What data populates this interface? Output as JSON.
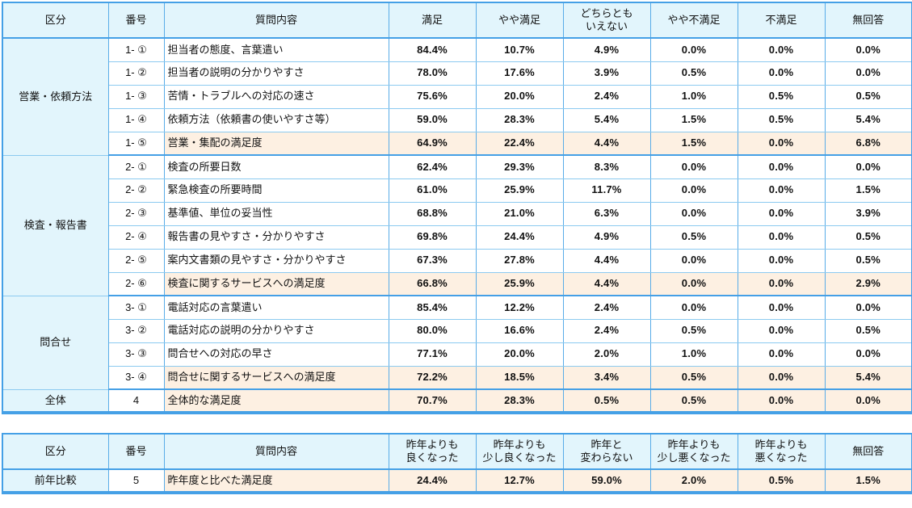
{
  "colors": {
    "border_strong": "#45a0e6",
    "border_light": "#8ccaf0",
    "header_bg": "#e2f5fc",
    "category_bg": "#e2f5fc",
    "highlight_bg": "#fdf0e2",
    "row_bg": "#ffffff",
    "text": "#111111"
  },
  "table1": {
    "headers": [
      "区分",
      "番号",
      "質問内容",
      "満足",
      "やや満足",
      "どちらとも\nいえない",
      "やや不満足",
      "不満足",
      "無回答"
    ],
    "groups": [
      {
        "category": "営業・依頼方法",
        "rows": [
          {
            "no": "1- ①",
            "question": "担当者の態度、言葉遣い",
            "values": [
              "84.4%",
              "10.7%",
              "4.9%",
              "0.0%",
              "0.0%",
              "0.0%"
            ],
            "highlight": false
          },
          {
            "no": "1- ②",
            "question": "担当者の説明の分かりやすさ",
            "values": [
              "78.0%",
              "17.6%",
              "3.9%",
              "0.5%",
              "0.0%",
              "0.0%"
            ],
            "highlight": false
          },
          {
            "no": "1- ③",
            "question": "苦情・トラブルへの対応の速さ",
            "values": [
              "75.6%",
              "20.0%",
              "2.4%",
              "1.0%",
              "0.5%",
              "0.5%"
            ],
            "highlight": false
          },
          {
            "no": "1- ④",
            "question": "依頼方法（依頼書の使いやすさ等）",
            "values": [
              "59.0%",
              "28.3%",
              "5.4%",
              "1.5%",
              "0.5%",
              "5.4%"
            ],
            "highlight": false
          },
          {
            "no": "1- ⑤",
            "question": "営業・集配の満足度",
            "values": [
              "64.9%",
              "22.4%",
              "4.4%",
              "1.5%",
              "0.0%",
              "6.8%"
            ],
            "highlight": true
          }
        ]
      },
      {
        "category": "検査・報告書",
        "rows": [
          {
            "no": "2- ①",
            "question": "検査の所要日数",
            "values": [
              "62.4%",
              "29.3%",
              "8.3%",
              "0.0%",
              "0.0%",
              "0.0%"
            ],
            "highlight": false
          },
          {
            "no": "2- ②",
            "question": "緊急検査の所要時間",
            "values": [
              "61.0%",
              "25.9%",
              "11.7%",
              "0.0%",
              "0.0%",
              "1.5%"
            ],
            "highlight": false
          },
          {
            "no": "2- ③",
            "question": "基準値、単位の妥当性",
            "values": [
              "68.8%",
              "21.0%",
              "6.3%",
              "0.0%",
              "0.0%",
              "3.9%"
            ],
            "highlight": false
          },
          {
            "no": "2- ④",
            "question": "報告書の見やすさ・分かりやすさ",
            "values": [
              "69.8%",
              "24.4%",
              "4.9%",
              "0.5%",
              "0.0%",
              "0.5%"
            ],
            "highlight": false
          },
          {
            "no": "2- ⑤",
            "question": "案内文書類の見やすさ・分かりやすさ",
            "values": [
              "67.3%",
              "27.8%",
              "4.4%",
              "0.0%",
              "0.0%",
              "0.5%"
            ],
            "highlight": false
          },
          {
            "no": "2- ⑥",
            "question": "検査に関するサービスへの満足度",
            "values": [
              "66.8%",
              "25.9%",
              "4.4%",
              "0.0%",
              "0.0%",
              "2.9%"
            ],
            "highlight": true
          }
        ]
      },
      {
        "category": "問合せ",
        "rows": [
          {
            "no": "3- ①",
            "question": "電話対応の言葉遣い",
            "values": [
              "85.4%",
              "12.2%",
              "2.4%",
              "0.0%",
              "0.0%",
              "0.0%"
            ],
            "highlight": false
          },
          {
            "no": "3- ②",
            "question": "電話対応の説明の分かりやすさ",
            "values": [
              "80.0%",
              "16.6%",
              "2.4%",
              "0.5%",
              "0.0%",
              "0.5%"
            ],
            "highlight": false
          },
          {
            "no": "3- ③",
            "question": "問合せへの対応の早さ",
            "values": [
              "77.1%",
              "20.0%",
              "2.0%",
              "1.0%",
              "0.0%",
              "0.0%"
            ],
            "highlight": false
          },
          {
            "no": "3- ④",
            "question": "問合せに関するサービスへの満足度",
            "values": [
              "72.2%",
              "18.5%",
              "3.4%",
              "0.5%",
              "0.0%",
              "5.4%"
            ],
            "highlight": true
          }
        ]
      },
      {
        "category": "全体",
        "rows": [
          {
            "no": "4",
            "question": "全体的な満足度",
            "values": [
              "70.7%",
              "28.3%",
              "0.5%",
              "0.5%",
              "0.0%",
              "0.0%"
            ],
            "highlight": true
          }
        ]
      }
    ]
  },
  "table2": {
    "headers": [
      "区分",
      "番号",
      "質問内容",
      "昨年よりも\n良くなった",
      "昨年よりも\n少し良くなった",
      "昨年と\n変わらない",
      "昨年よりも\n少し悪くなった",
      "昨年よりも\n悪くなった",
      "無回答"
    ],
    "groups": [
      {
        "category": "前年比較",
        "rows": [
          {
            "no": "5",
            "question": "昨年度と比べた満足度",
            "values": [
              "24.4%",
              "12.7%",
              "59.0%",
              "2.0%",
              "0.5%",
              "1.5%"
            ],
            "highlight": true
          }
        ]
      }
    ]
  }
}
